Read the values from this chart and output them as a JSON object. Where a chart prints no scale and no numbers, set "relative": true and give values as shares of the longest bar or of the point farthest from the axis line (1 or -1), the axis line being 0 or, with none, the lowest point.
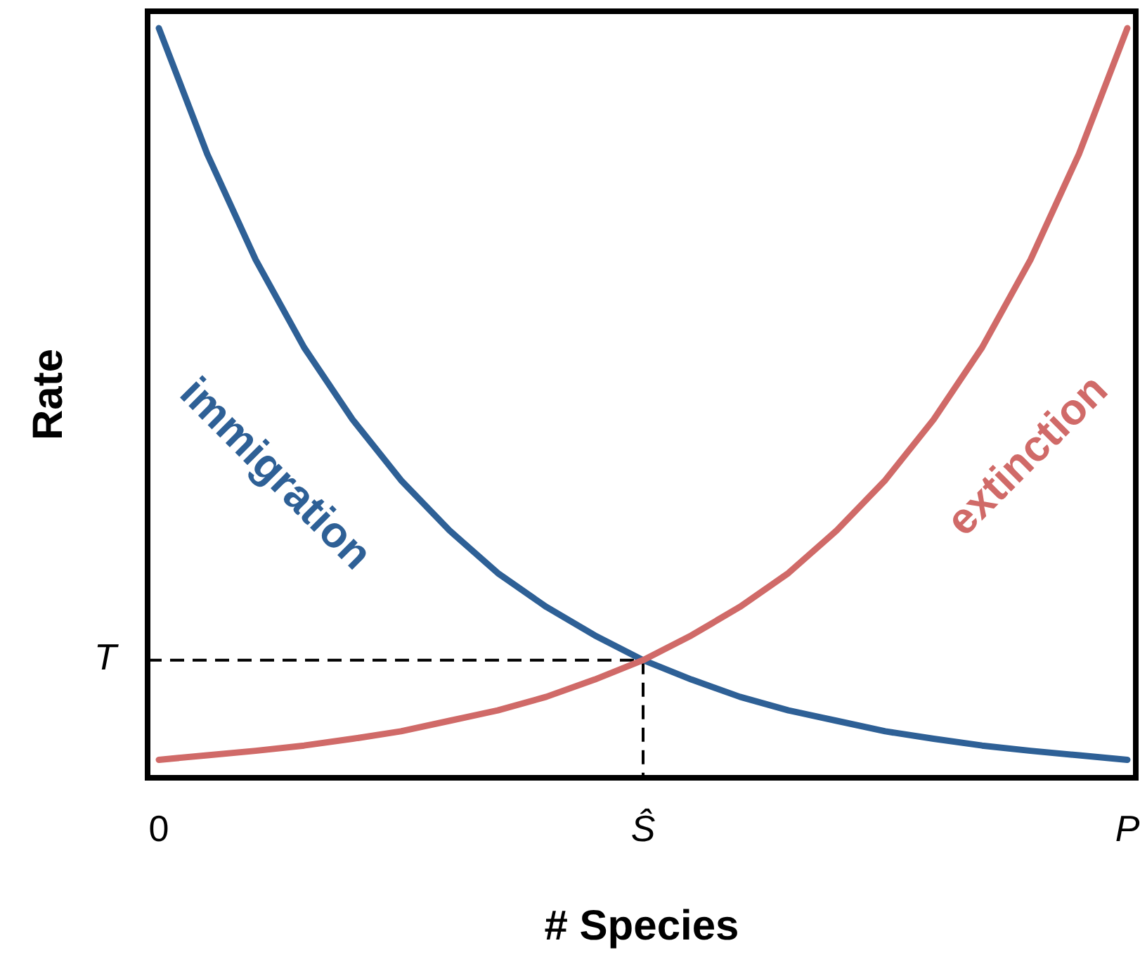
{
  "chart_data": {
    "type": "line",
    "relative": true,
    "xlabel": "# Species",
    "ylabel": "Rate",
    "categories": [
      "0",
      null,
      null,
      null,
      null,
      null,
      null,
      null,
      null,
      null,
      "Ŝ",
      null,
      null,
      null,
      null,
      null,
      null,
      null,
      null,
      null,
      "P"
    ],
    "series": [
      {
        "name": "immigration",
        "color": "#2e6096",
        "values": [
          1,
          0.832,
          0.691,
          0.574,
          0.478,
          0.397,
          0.33,
          0.273,
          0.228,
          0.19,
          0.157,
          0.131,
          0.108,
          0.09,
          0.076,
          0.062,
          0.052,
          0.043,
          0.036,
          0.03,
          0.024
        ]
      },
      {
        "name": "extinction",
        "color": "#d06a68",
        "values": [
          0.024,
          0.03,
          0.036,
          0.043,
          0.052,
          0.062,
          0.076,
          0.09,
          0.108,
          0.131,
          0.157,
          0.19,
          0.228,
          0.273,
          0.33,
          0.397,
          0.478,
          0.574,
          0.691,
          0.832,
          1
        ]
      }
    ],
    "ref_lines": [
      {
        "axis": "y",
        "value": 0.157,
        "label": "T",
        "line_style": "dashed"
      },
      {
        "axis": "x",
        "value": "Ŝ",
        "label": null,
        "line_style": "dashed"
      }
    ],
    "legend": false,
    "grid": false,
    "marker": "none",
    "line_style": "solid"
  }
}
